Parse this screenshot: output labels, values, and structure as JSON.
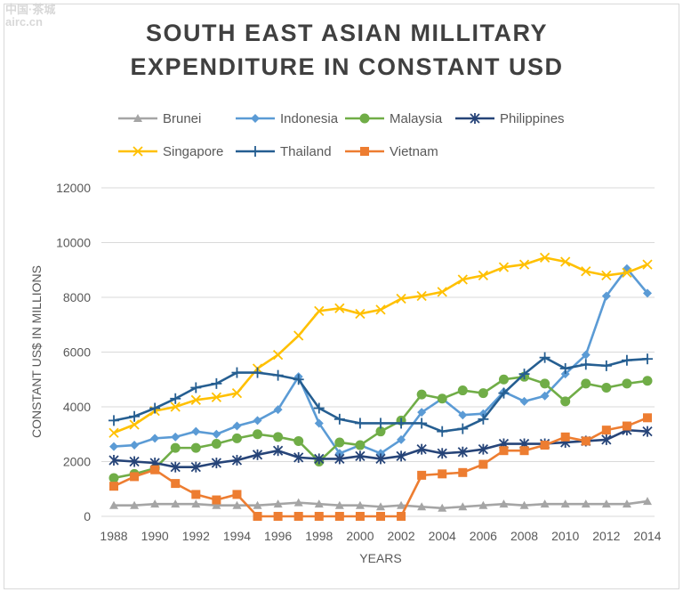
{
  "watermark": "中国·茶城\nairc.cn",
  "chart_data": {
    "type": "line",
    "title": [
      "SOUTH EAST ASIAN MILLITARY",
      "EXPENDITURE IN CONSTANT USD"
    ],
    "xlabel": "YEARS",
    "ylabel": "CONSTANT US$ IN MILLIONS",
    "xlim": [
      1988,
      2014
    ],
    "ylim": [
      0,
      12000
    ],
    "yticks": [
      0,
      2000,
      4000,
      6000,
      8000,
      10000,
      12000
    ],
    "xticks": [
      1988,
      1990,
      1992,
      1994,
      1996,
      1998,
      2000,
      2002,
      2004,
      2006,
      2008,
      2010,
      2012,
      2014
    ],
    "grid": "horizontal",
    "legend": "top",
    "x": [
      1988,
      1989,
      1990,
      1991,
      1992,
      1993,
      1994,
      1995,
      1996,
      1997,
      1998,
      1999,
      2000,
      2001,
      2002,
      2003,
      2004,
      2005,
      2006,
      2007,
      2008,
      2009,
      2010,
      2011,
      2012,
      2013,
      2014
    ],
    "series": [
      {
        "name": "Brunei",
        "color": "#a5a5a5",
        "marker": "triangle",
        "values": [
          400,
          400,
          450,
          450,
          450,
          400,
          400,
          400,
          450,
          500,
          450,
          400,
          400,
          350,
          400,
          350,
          300,
          350,
          400,
          450,
          400,
          450,
          450,
          450,
          450,
          450,
          550
        ]
      },
      {
        "name": "Indonesia",
        "color": "#5b9bd5",
        "marker": "diamond",
        "values": [
          2550,
          2600,
          2850,
          2900,
          3100,
          3000,
          3300,
          3500,
          3900,
          5100,
          3400,
          2300,
          2600,
          2300,
          2800,
          3800,
          4300,
          3700,
          3750,
          4550,
          4200,
          4400,
          5200,
          5900,
          8050,
          9050,
          8150
        ]
      },
      {
        "name": "Malaysia",
        "color": "#70ad47",
        "marker": "circle",
        "values": [
          1400,
          1550,
          1750,
          2500,
          2500,
          2650,
          2850,
          3000,
          2900,
          2750,
          2000,
          2700,
          2600,
          3100,
          3500,
          4450,
          4300,
          4600,
          4500,
          5000,
          5100,
          4850,
          4200,
          4850,
          4700,
          4850,
          4950
        ]
      },
      {
        "name": "Philippines",
        "color": "#264478",
        "marker": "asterisk",
        "values": [
          2050,
          2000,
          1950,
          1800,
          1800,
          1950,
          2050,
          2250,
          2400,
          2150,
          2100,
          2100,
          2200,
          2100,
          2200,
          2450,
          2300,
          2350,
          2450,
          2650,
          2650,
          2650,
          2700,
          2750,
          2800,
          3150,
          3100
        ]
      },
      {
        "name": "Singapore",
        "color": "#ffc000",
        "marker": "x",
        "values": [
          3050,
          3350,
          3850,
          4000,
          4250,
          4350,
          4500,
          5400,
          5900,
          6600,
          7500,
          7600,
          7400,
          7550,
          7950,
          8050,
          8200,
          8650,
          8800,
          9100,
          9200,
          9450,
          9300,
          8950,
          8800,
          8900,
          9200
        ]
      },
      {
        "name": "Thailand",
        "color": "#255e91",
        "marker": "plus",
        "values": [
          3500,
          3650,
          3950,
          4300,
          4700,
          4850,
          5250,
          5250,
          5150,
          5000,
          3950,
          3550,
          3400,
          3400,
          3400,
          3400,
          3100,
          3200,
          3550,
          4500,
          5200,
          5800,
          5400,
          5550,
          5500,
          5700,
          5750
        ]
      },
      {
        "name": "Vietnam",
        "color": "#ed7d31",
        "marker": "square",
        "values": [
          1100,
          1450,
          1700,
          1200,
          800,
          600,
          800,
          0,
          0,
          0,
          0,
          0,
          0,
          0,
          0,
          1500,
          1550,
          1600,
          1900,
          2400,
          2400,
          2600,
          2900,
          2750,
          3150,
          3300,
          3600
        ]
      }
    ]
  }
}
